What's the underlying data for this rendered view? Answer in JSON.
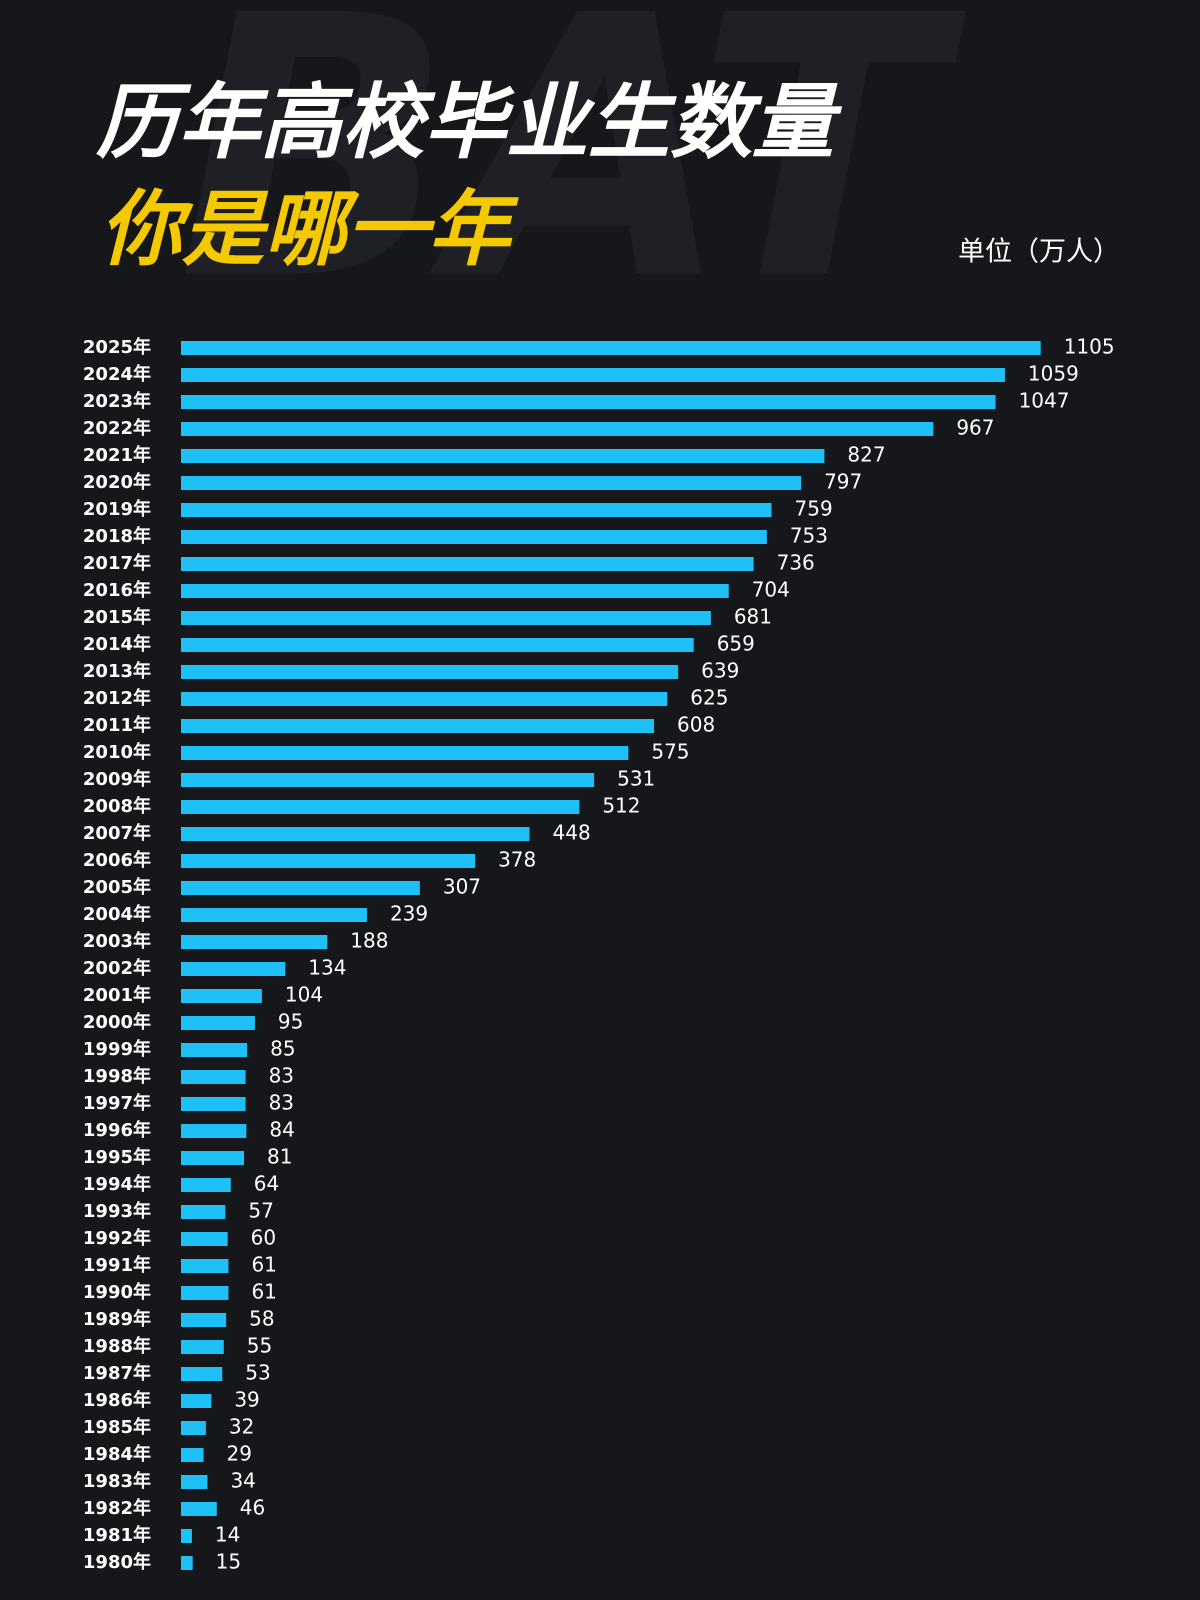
{
  "chart_data": {
    "type": "bar",
    "orientation": "horizontal",
    "watermark": "BAT",
    "title": "历年高校毕业生数量",
    "subtitle": "你是哪一年",
    "unit": "单位（万人）",
    "color": "#1ec0f5",
    "categories": [
      "2025年",
      "2024年",
      "2023年",
      "2022年",
      "2021年",
      "2020年",
      "2019年",
      "2018年",
      "2017年",
      "2016年",
      "2015年",
      "2014年",
      "2013年",
      "2012年",
      "2011年",
      "2010年",
      "2009年",
      "2008年",
      "2007年",
      "2006年",
      "2005年",
      "2004年",
      "2003年",
      "2002年",
      "2001年",
      "2000年",
      "1999年",
      "1998年",
      "1997年",
      "1996年",
      "1995年",
      "1994年",
      "1993年",
      "1992年",
      "1991年",
      "1990年",
      "1989年",
      "1988年",
      "1987年",
      "1986年",
      "1985年",
      "1984年",
      "1983年",
      "1982年",
      "1981年",
      "1980年"
    ],
    "values": [
      1105,
      1059,
      1047,
      967,
      827,
      797,
      759,
      753,
      736,
      704,
      681,
      659,
      639,
      625,
      608,
      575,
      531,
      512,
      448,
      378,
      307,
      239,
      188,
      134,
      104,
      95,
      85,
      83,
      83,
      84,
      81,
      64,
      57,
      60,
      61,
      61,
      58,
      55,
      53,
      39,
      32,
      29,
      34,
      46,
      14,
      15
    ]
  }
}
